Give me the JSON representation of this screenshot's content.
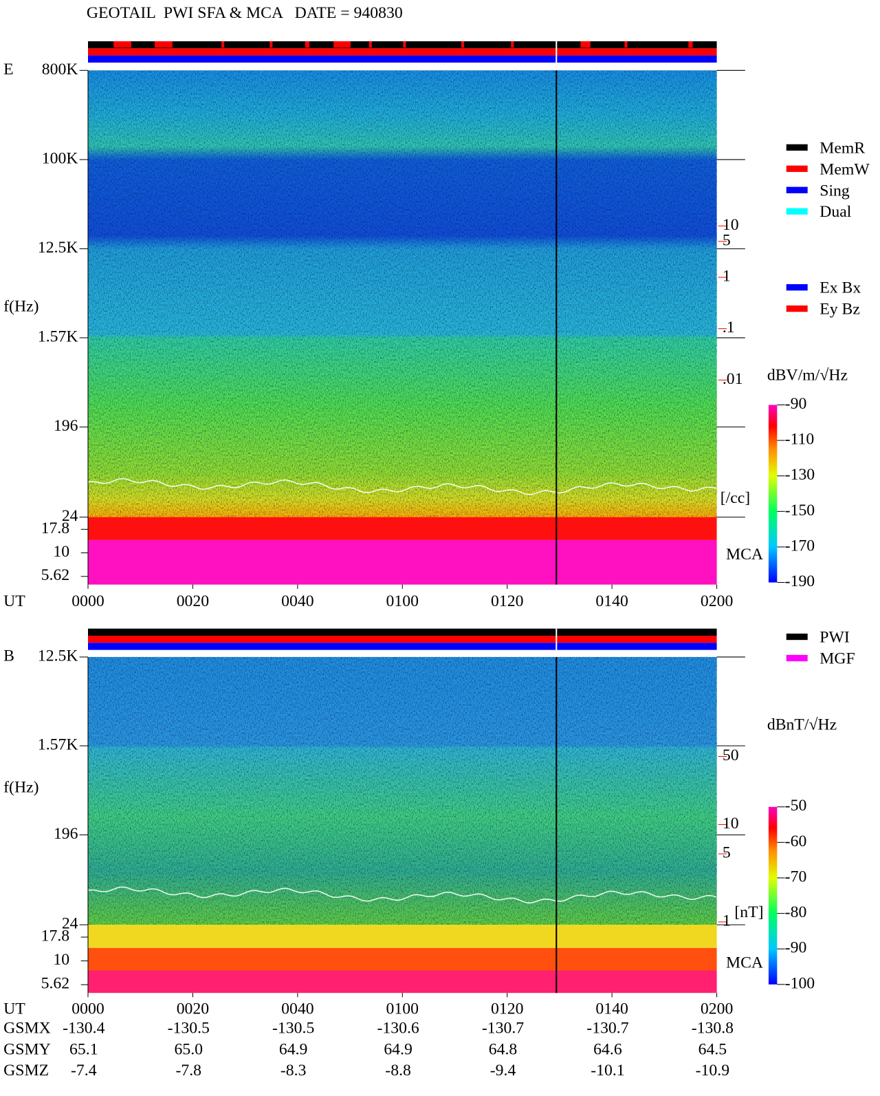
{
  "header": {
    "title": "GEOTAIL  PWI SFA & MCA   DATE = 940830"
  },
  "chart_data": [
    {
      "type": "spectrogram",
      "panel_label": "E",
      "y_label": "f(Hz)",
      "x_label": "UT",
      "xlim": [
        0,
        120
      ],
      "xticks": [
        {
          "value": 0,
          "label": "0000"
        },
        {
          "value": 20,
          "label": "0020"
        },
        {
          "value": 40,
          "label": "0040"
        },
        {
          "value": 60,
          "label": "0100"
        },
        {
          "value": 80,
          "label": "0120"
        },
        {
          "value": 100,
          "label": "0140"
        },
        {
          "value": 120,
          "label": "0200"
        }
      ],
      "log_y": true,
      "ylim": [
        24,
        800000
      ],
      "yticks": [
        {
          "value": 800000,
          "label": "800K"
        },
        {
          "value": 100000,
          "label": "100K"
        },
        {
          "value": 12500,
          "label": "12.5K"
        },
        {
          "value": 1570,
          "label": "1.57K"
        },
        196,
        24
      ],
      "mca_label": "MCA",
      "mca_ylim": [
        4.6,
        24
      ],
      "mca_yticks": [
        17.8,
        10,
        5.62
      ],
      "y2_label": "[/cc]",
      "y2lim": [
        0.01,
        10
      ],
      "y2ticks": [
        10,
        5,
        1,
        {
          "value": 0.1,
          "label": ".1"
        },
        {
          "value": 0.01,
          "label": ".01"
        }
      ],
      "colorbar": {
        "label": "dBV/m/√Hz",
        "lim": [
          -190,
          -90
        ],
        "ticks": [
          -90,
          -110,
          -130,
          -150,
          -170,
          -190
        ]
      },
      "legend": [
        {
          "name": "MemR",
          "color": "#000000"
        },
        {
          "name": "MemW",
          "color": "#ff0000"
        },
        {
          "name": "Sing",
          "color": "#0000ff"
        },
        {
          "name": "Dual",
          "color": "#00ffff"
        },
        {
          "name": "Ex Bx",
          "color": "#0000ff"
        },
        {
          "name": "Ey Bz",
          "color": "#ff0000"
        }
      ]
    },
    {
      "type": "spectrogram",
      "panel_label": "B",
      "y_label": "f(Hz)",
      "x_label": "UT",
      "xlim": [
        0,
        120
      ],
      "xticks": [
        {
          "value": 0,
          "label": "0000"
        },
        {
          "value": 20,
          "label": "0020"
        },
        {
          "value": 40,
          "label": "0040"
        },
        {
          "value": 60,
          "label": "0100"
        },
        {
          "value": 80,
          "label": "0120"
        },
        {
          "value": 100,
          "label": "0140"
        },
        {
          "value": 120,
          "label": "0200"
        }
      ],
      "log_y": true,
      "ylim": [
        24,
        12500
      ],
      "yticks": [
        {
          "value": 12500,
          "label": "12.5K"
        },
        {
          "value": 1570,
          "label": "1.57K"
        },
        196,
        24
      ],
      "mca_label": "MCA",
      "mca_ylim": [
        4.6,
        24
      ],
      "mca_yticks": [
        17.8,
        10,
        5.62
      ],
      "y2_label": "[nT]",
      "y2lim": [
        1,
        50
      ],
      "y2ticks": [
        50,
        10,
        5,
        1
      ],
      "colorbar": {
        "label": "dBnT/√Hz",
        "lim": [
          -100,
          -50
        ],
        "ticks": [
          -50,
          -60,
          -70,
          -80,
          -90,
          -100
        ]
      },
      "legend": [
        {
          "name": "PWI",
          "color": "#000000"
        },
        {
          "name": "MGF",
          "color": "#ff00ff"
        }
      ]
    }
  ],
  "orbit": {
    "rows": [
      {
        "label": "GSMX",
        "values": [
          "-130.4",
          "-130.5",
          "-130.5",
          "-130.6",
          "-130.7",
          "-130.7",
          "-130.8"
        ]
      },
      {
        "label": "GSMY",
        "values": [
          "65.1",
          "65.0",
          "64.9",
          "64.9",
          "64.8",
          "64.6",
          "64.5"
        ]
      },
      {
        "label": "GSMZ",
        "values": [
          "-7.4",
          "-7.8",
          "-8.3",
          "-8.8",
          "-9.4",
          "-10.1",
          "-10.9"
        ]
      }
    ]
  }
}
